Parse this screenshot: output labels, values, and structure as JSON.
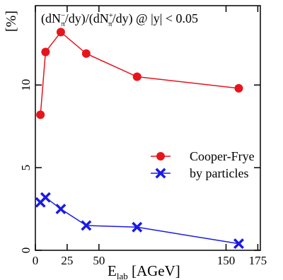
{
  "chart_data": {
    "type": "line",
    "title_parts": {
      "open": "(dN",
      "sup1": "−",
      "sub1": "π",
      "mid": "/dy)/(dN",
      "sup2": "+",
      "sub2": "π",
      "close": "/dy) @ |y| < 0.05"
    },
    "xlabel": {
      "main": "E",
      "sub": "lab",
      "unit": " [AGeV]"
    },
    "ylabel": "[%]",
    "xlim": [
      0,
      177
    ],
    "ylim": [
      0,
      14.8
    ],
    "xticks": [
      0,
      25,
      50,
      150,
      175
    ],
    "xtick_labels": [
      "0",
      "25",
      "50",
      "150",
      "175"
    ],
    "yticks": [
      0,
      5,
      10
    ],
    "ytick_labels": [
      "0",
      "5",
      "10"
    ],
    "legend_placement": "right",
    "series": [
      {
        "name": "Cooper-Frye",
        "color": "#e8141c",
        "marker": "circle",
        "x": [
          4,
          8,
          20,
          40,
          80,
          160
        ],
        "y": [
          8.2,
          12.0,
          13.2,
          11.9,
          10.5,
          9.8
        ]
      },
      {
        "name": "by particles",
        "color": "#1a1ae6",
        "marker": "x",
        "x": [
          4,
          8,
          20,
          40,
          80,
          160
        ],
        "y": [
          2.9,
          3.2,
          2.5,
          1.5,
          1.4,
          0.4
        ]
      }
    ]
  }
}
